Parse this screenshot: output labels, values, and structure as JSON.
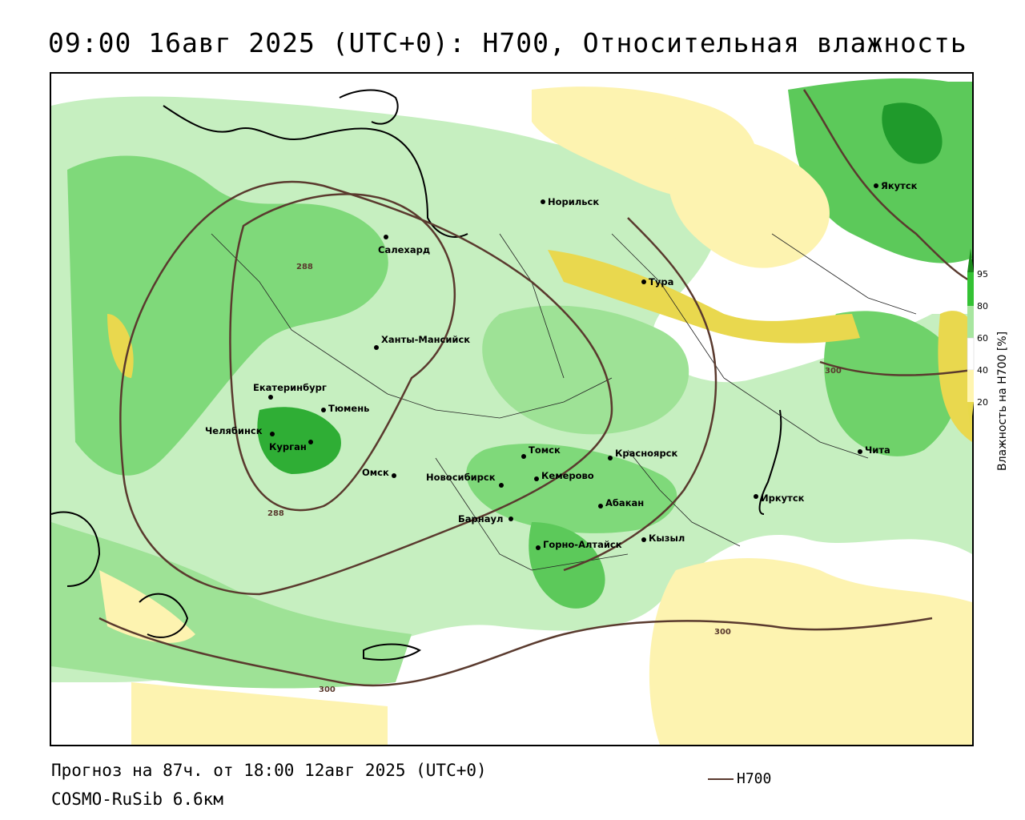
{
  "title": "09:00 16авг 2025 (UTC+0): H700, Относительная влажность",
  "footer": {
    "forecast": "Прогноз на 87ч. от 18:00 12авг 2025 (UTC+0)",
    "model": "COSMO-RuSib 6.6км",
    "legend_line_label": "H700"
  },
  "colorbar": {
    "title": "Влажность на Н700 [%]",
    "ticks": [
      "95",
      "80",
      "60",
      "40",
      "20"
    ],
    "colors": [
      "#1a8a1a",
      "#34c234",
      "#a8e6a0",
      "#ffffff",
      "#fff5b0",
      "#e8d84a"
    ]
  },
  "isolines": {
    "color": "#5a3a2e",
    "labels": [
      "288",
      "288",
      "300",
      "300",
      "300"
    ]
  },
  "cities": [
    {
      "name": "Норильск"
    },
    {
      "name": "Якутск"
    },
    {
      "name": "Салехард"
    },
    {
      "name": "Тура"
    },
    {
      "name": "Ханты-Мансийск"
    },
    {
      "name": "Екатеринбург"
    },
    {
      "name": "Тюмень"
    },
    {
      "name": "Челябинск"
    },
    {
      "name": "Курган"
    },
    {
      "name": "Омск"
    },
    {
      "name": "Томск"
    },
    {
      "name": "Красноярск"
    },
    {
      "name": "Новосибирск"
    },
    {
      "name": "Кемерово"
    },
    {
      "name": "Абакан"
    },
    {
      "name": "Иркутск"
    },
    {
      "name": "Чита"
    },
    {
      "name": "Барнаул"
    },
    {
      "name": "Горно-Алтайск"
    },
    {
      "name": "Кызыл"
    }
  ]
}
